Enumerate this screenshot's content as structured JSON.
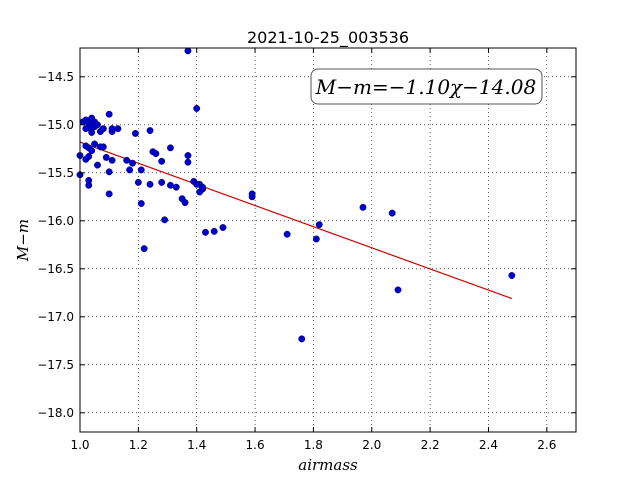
{
  "chart_data": {
    "type": "scatter",
    "title": "2021-10-25_003536",
    "xlabel": "airmass",
    "ylabel": "M−m",
    "xlim": [
      1.0,
      2.7
    ],
    "ylim": [
      -18.2,
      -14.2
    ],
    "y_inverted": true,
    "grid": true,
    "xticks": [
      1.0,
      1.2,
      1.4,
      1.6,
      1.8,
      2.0,
      2.2,
      2.4,
      2.6
    ],
    "xtick_labels": [
      "1.0",
      "1.2",
      "1.4",
      "1.6",
      "1.8",
      "2.0",
      "2.2",
      "2.4",
      "2.6"
    ],
    "yticks": [
      -14.5,
      -15.0,
      -15.5,
      -16.0,
      -16.5,
      -17.0,
      -17.5,
      -18.0
    ],
    "ytick_labels": [
      "−14.5",
      "−15.0",
      "−15.5",
      "−16.0",
      "−16.5",
      "−17.0",
      "−17.5",
      "−18.0"
    ],
    "annotation": "M−m=−1.10χ−14.08",
    "annotation_placement": "top-right",
    "points_color": "#0000cc",
    "fit_color": "#cc0000",
    "fit_line": {
      "x": [
        1.0,
        2.48
      ],
      "y": [
        -15.18,
        -16.81
      ]
    },
    "points": {
      "x": [
        1.0,
        1.01,
        1.02,
        1.02,
        1.03,
        1.03,
        1.04,
        1.04,
        1.05,
        1.05,
        1.06,
        1.07,
        1.08,
        1.1,
        1.11,
        1.11,
        1.13,
        1.02,
        1.03,
        1.05,
        1.07,
        1.08,
        1.04,
        1.02,
        1.03,
        1.09,
        1.11,
        1.06,
        1.1,
        1.0,
        1.03,
        1.03,
        1.1,
        1.16,
        1.17,
        1.18,
        1.19,
        1.2,
        1.21,
        1.21,
        1.22,
        1.24,
        1.25,
        1.26,
        1.28,
        1.29,
        1.31,
        1.33,
        1.35,
        1.36,
        1.37,
        1.37,
        1.39,
        1.4,
        1.41,
        1.41,
        1.42,
        1.42,
        1.43,
        1.46,
        1.49,
        1.4,
        1.37,
        1.31,
        1.24,
        1.28,
        1.59,
        1.59,
        1.71,
        1.76,
        1.81,
        1.82,
        1.97,
        2.07,
        2.09,
        2.48
      ],
      "y": [
        -15.32,
        -14.97,
        -14.95,
        -15.04,
        -14.99,
        -15.03,
        -14.93,
        -15.08,
        -14.97,
        -15.02,
        -15.0,
        -15.07,
        -15.04,
        -14.89,
        -15.07,
        -15.04,
        -15.04,
        -15.22,
        -15.24,
        -15.2,
        -15.23,
        -15.23,
        -15.27,
        -15.36,
        -15.33,
        -15.34,
        -15.37,
        -15.42,
        -15.49,
        -15.52,
        -15.58,
        -15.63,
        -15.72,
        -15.37,
        -15.47,
        -15.4,
        -15.09,
        -15.6,
        -15.47,
        -15.82,
        -16.29,
        -15.06,
        -15.28,
        -15.3,
        -15.38,
        -15.99,
        -15.63,
        -15.65,
        -15.77,
        -15.81,
        -15.39,
        -15.32,
        -15.59,
        -14.83,
        -15.62,
        -15.7,
        -15.67,
        -15.65,
        -16.12,
        -16.11,
        -16.07,
        -15.62,
        -14.23,
        -15.24,
        -15.62,
        -15.6,
        -15.72,
        -15.75,
        -16.14,
        -17.23,
        -16.19,
        -16.04,
        -15.86,
        -15.92,
        -16.72,
        -16.57
      ]
    }
  }
}
